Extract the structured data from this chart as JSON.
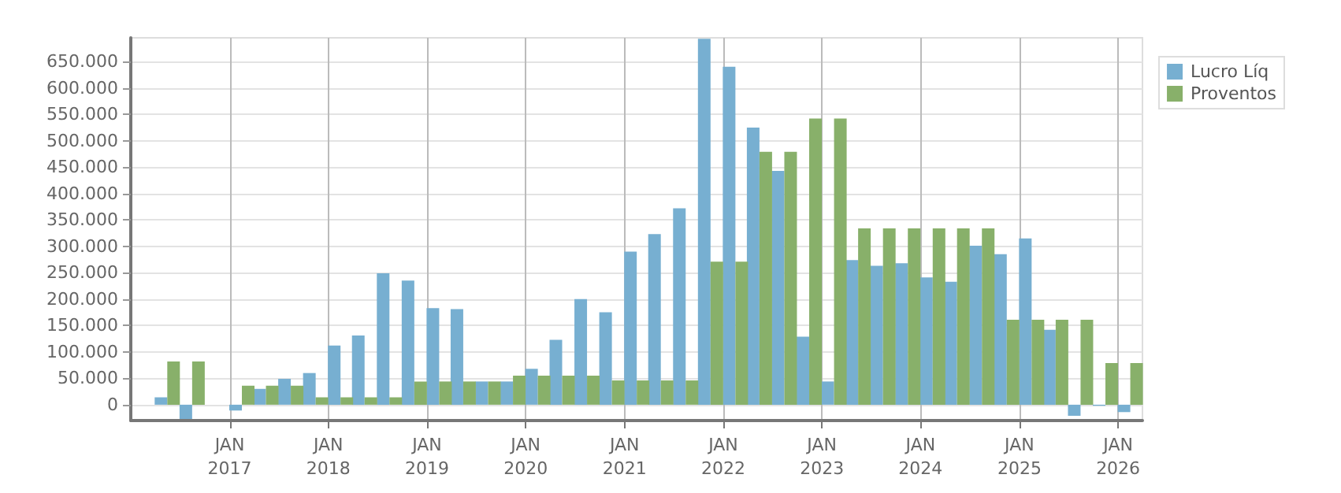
{
  "chart_data": {
    "type": "bar",
    "x": [
      "2016-05-15",
      "2016-08-15",
      "2016-11-15",
      "2017-02-15",
      "2017-05-15",
      "2017-08-15",
      "2017-11-15",
      "2018-02-15",
      "2018-05-15",
      "2018-08-15",
      "2018-11-15",
      "2019-02-15",
      "2019-05-15",
      "2019-08-15",
      "2019-11-15",
      "2020-02-15",
      "2020-05-15",
      "2020-08-15",
      "2020-11-15",
      "2021-02-15",
      "2021-05-15",
      "2021-08-15",
      "2021-11-15",
      "2022-02-15",
      "2022-05-15",
      "2022-08-15",
      "2022-11-15",
      "2023-02-15",
      "2023-05-15",
      "2023-08-15",
      "2023-11-15",
      "2024-02-15",
      "2024-05-15",
      "2024-08-15",
      "2024-11-15",
      "2025-02-15",
      "2025-05-15",
      "2025-08-15",
      "2025-11-15",
      "2026-02-15"
    ],
    "series": [
      {
        "name": "Lucro Líq",
        "color": "#77afd1",
        "values": [
          14000,
          -27000,
          null,
          -11000,
          30000,
          49000,
          60000,
          112000,
          131000,
          249000,
          235000,
          183000,
          181000,
          44000,
          44000,
          68000,
          123000,
          200000,
          175000,
          290000,
          323000,
          372000,
          693000,
          640000,
          525000,
          443000,
          129000,
          44000,
          274000,
          263000,
          268000,
          241000,
          233000,
          301000,
          285000,
          315000,
          142000,
          -21000,
          -2000,
          -14000
        ]
      },
      {
        "name": "Proventos",
        "color": "#88b06a",
        "values": [
          82000,
          82000,
          null,
          36000,
          36000,
          36000,
          14000,
          14000,
          14000,
          14000,
          44000,
          44000,
          44000,
          44000,
          55000,
          55000,
          55000,
          55000,
          46000,
          46000,
          46000,
          46000,
          271000,
          271000,
          479000,
          479000,
          542000,
          542000,
          334000,
          334000,
          334000,
          334000,
          334000,
          334000,
          161000,
          161000,
          161000,
          161000,
          79000,
          79000
        ]
      }
    ],
    "xlim": [
      "2016-01-01",
      "2026-04-01"
    ],
    "xticks": [
      {
        "value": "2017-01-01",
        "label": "JAN\n2017"
      },
      {
        "value": "2018-01-01",
        "label": "JAN\n2018"
      },
      {
        "value": "2019-01-01",
        "label": "JAN\n2019"
      },
      {
        "value": "2020-01-01",
        "label": "JAN\n2020"
      },
      {
        "value": "2021-01-01",
        "label": "JAN\n2021"
      },
      {
        "value": "2022-01-01",
        "label": "JAN\n2022"
      },
      {
        "value": "2023-01-01",
        "label": "JAN\n2023"
      },
      {
        "value": "2024-01-01",
        "label": "JAN\n2024"
      },
      {
        "value": "2025-01-01",
        "label": "JAN\n2025"
      },
      {
        "value": "2026-01-01",
        "label": "JAN\n2026"
      }
    ],
    "ylim": [
      -30000,
      695000
    ],
    "yticks": [
      0,
      {
        "value": 50000,
        "label": "50.000"
      },
      {
        "value": 100000,
        "label": "100.000"
      },
      {
        "value": 150000,
        "label": "150.000"
      },
      {
        "value": 200000,
        "label": "200.000"
      },
      {
        "value": 250000,
        "label": "250.000"
      },
      {
        "value": 300000,
        "label": "300.000"
      },
      {
        "value": 350000,
        "label": "350.000"
      },
      {
        "value": 400000,
        "label": "400.000"
      },
      {
        "value": 450000,
        "label": "450.000"
      },
      {
        "value": 500000,
        "label": "500.000"
      },
      {
        "value": 550000,
        "label": "550.000"
      },
      {
        "value": 600000,
        "label": "600.000"
      },
      {
        "value": 650000,
        "label": "650.000"
      }
    ],
    "grid": true,
    "legend": "top right"
  }
}
